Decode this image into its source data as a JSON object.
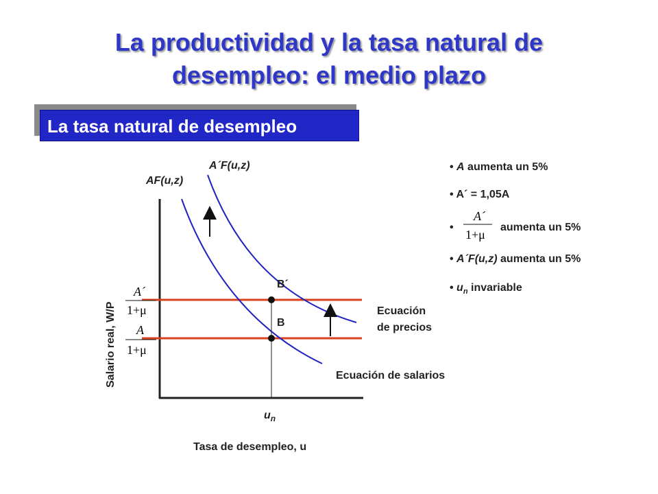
{
  "title": {
    "line1": "La productividad y la tasa natural de",
    "line2": "desempleo: el medio plazo"
  },
  "subtitle": "La tasa natural de desempleo",
  "diagram": {
    "y_axis_label": "Salario real, W/P",
    "x_axis_label": "Tasa de desempleo, u",
    "curve_af_label": "AF(u,z)",
    "curve_apf_label": "A´F(u,z)",
    "point_b": "B",
    "point_bp": "B´",
    "un_u": "u",
    "un_sub": "n",
    "price_eq_line1": "Ecuación",
    "price_eq_line2": "de precios",
    "wage_eq_label": "Ecuación de salarios",
    "frac_top_num": "A´",
    "frac_bottom_num": "A",
    "frac_den": "1+μ",
    "colors": {
      "curves": "#1f22c0",
      "price_lines": "#d8421c",
      "axis": "#222222"
    }
  },
  "bullets": {
    "b1_italic": "A",
    "b1_rest": " aumenta un 5%",
    "b2_text": "A´ = 1,05A",
    "b3_num": "A´",
    "b3_den": "1+μ",
    "b3_rest": "aumenta un 5%",
    "b4_italic": "A´F(u,z)",
    "b4_rest": " aumenta un 5%",
    "b5_u": "u",
    "b5_sub": "n",
    "b5_rest": " invariable"
  }
}
